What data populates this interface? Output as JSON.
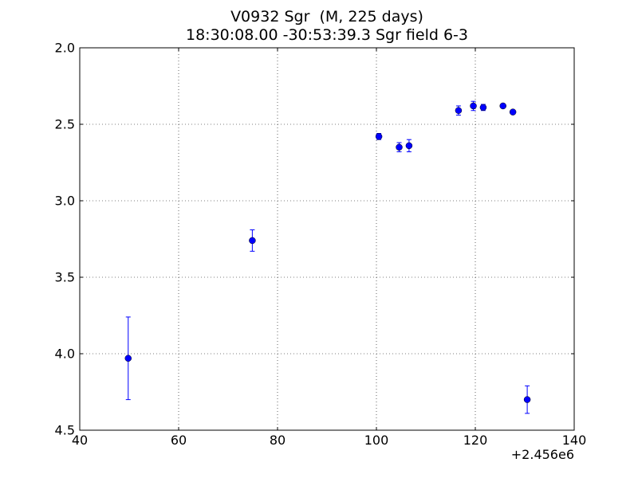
{
  "chart_data": {
    "type": "scatter",
    "title": "V0932 Sgr  (M, 225 days)",
    "subtitle": "18:30:08.00 -30:53:39.3 Sgr field 6-3",
    "xlabel": "",
    "ylabel": "",
    "x_offset_label": "+2.456e6",
    "xlim": [
      40,
      140
    ],
    "ylim": [
      2.0,
      4.5
    ],
    "y_inverted": true,
    "grid": true,
    "x_ticks": [
      40,
      60,
      80,
      100,
      120,
      140
    ],
    "x_tick_labels": [
      "40",
      "60",
      "80",
      "100",
      "120",
      "140"
    ],
    "y_ticks": [
      2.0,
      2.5,
      3.0,
      3.5,
      4.0,
      4.5
    ],
    "y_tick_labels": [
      "2.0",
      "2.5",
      "3.0",
      "3.5",
      "4.0",
      "4.5"
    ],
    "marker_color": "#0000ff",
    "points": [
      {
        "x": 49.8,
        "y": 4.03,
        "err": 0.27
      },
      {
        "x": 74.9,
        "y": 3.26,
        "err": 0.07
      },
      {
        "x": 100.5,
        "y": 2.58,
        "err": 0.02
      },
      {
        "x": 104.6,
        "y": 2.65,
        "err": 0.03
      },
      {
        "x": 106.6,
        "y": 2.64,
        "err": 0.04
      },
      {
        "x": 116.6,
        "y": 2.41,
        "err": 0.03
      },
      {
        "x": 119.6,
        "y": 2.38,
        "err": 0.03
      },
      {
        "x": 121.6,
        "y": 2.39,
        "err": 0.02
      },
      {
        "x": 125.6,
        "y": 2.38,
        "err": 0.01
      },
      {
        "x": 127.6,
        "y": 2.42,
        "err": 0.01
      },
      {
        "x": 130.5,
        "y": 4.3,
        "err": 0.09
      }
    ]
  }
}
